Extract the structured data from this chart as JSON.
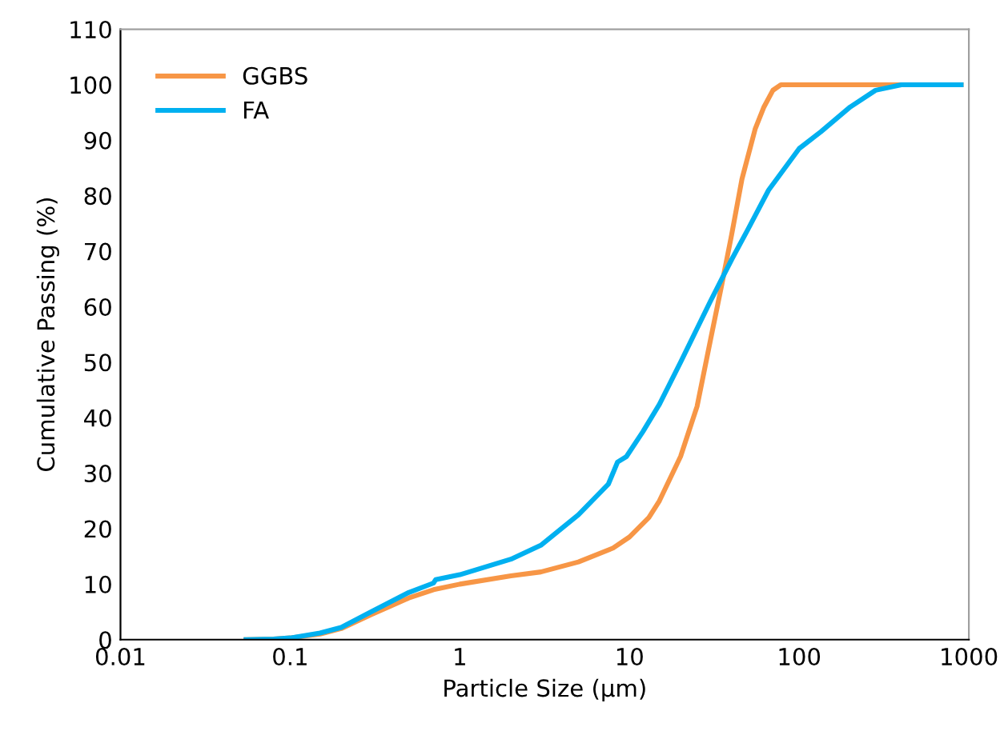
{
  "chart_data": {
    "type": "line",
    "xlabel": "Particle Size (µm)",
    "ylabel": "Cumulative Passing (%)",
    "log": "x",
    "xlim": [
      0.01,
      1000
    ],
    "xticks": [
      0.01,
      0.1,
      1,
      10,
      100,
      1000
    ],
    "ylim": [
      0,
      110
    ],
    "yticks": [
      0,
      10,
      20,
      30,
      40,
      50,
      60,
      70,
      80,
      90,
      100,
      110
    ],
    "grid": false,
    "legend": "top left",
    "marker": "none",
    "line_style": "solid",
    "series": [
      {
        "name": "GGBS",
        "color": "#f79646",
        "x": [
          0.055,
          0.08,
          0.1,
          0.15,
          0.2,
          0.3,
          0.5,
          0.7,
          1,
          2,
          3,
          5,
          8,
          10,
          13,
          15,
          20,
          25,
          30,
          35,
          40,
          46,
          55,
          62,
          70,
          78,
          100,
          300,
          900
        ],
        "values": [
          0,
          0.1,
          0.3,
          1,
          2,
          4.5,
          7.5,
          9,
          10,
          11.5,
          12.2,
          14,
          16.5,
          18.5,
          22,
          25,
          33,
          42,
          54,
          64,
          73,
          83,
          92,
          96,
          99,
          100,
          100,
          100,
          100
        ]
      },
      {
        "name": "FA",
        "color": "#00b0f0",
        "x": [
          0.055,
          0.08,
          0.1,
          0.15,
          0.2,
          0.3,
          0.5,
          0.7,
          0.72,
          1,
          2,
          3,
          5,
          7.5,
          8.5,
          9.6,
          12,
          15,
          20,
          30,
          40,
          50,
          66,
          100,
          134,
          200,
          282,
          400,
          900
        ],
        "values": [
          0,
          0.1,
          0.3,
          1.2,
          2.2,
          5,
          8.5,
          10.2,
          10.8,
          11.7,
          14.5,
          17,
          22.5,
          28,
          32,
          33,
          37.5,
          42.4,
          50,
          61,
          68.5,
          74,
          81,
          88.5,
          91.5,
          96,
          99,
          100,
          100
        ]
      }
    ]
  }
}
